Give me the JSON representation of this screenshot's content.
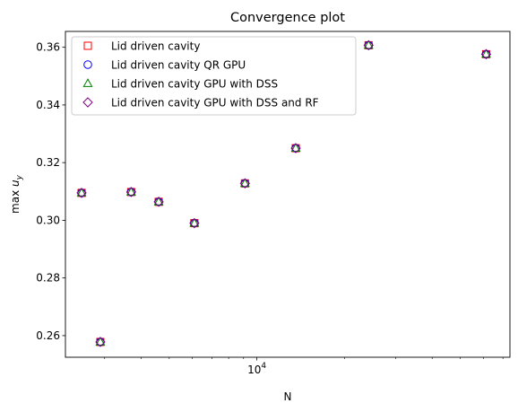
{
  "chart_data": {
    "type": "scatter",
    "title": "Convergence plot",
    "xlabel": "N",
    "ylabel_prefix": "max",
    "ylabel_var": "u",
    "ylabel_sub": "y",
    "x_scale": "log",
    "xlim": [
      2200,
      74000
    ],
    "ylim": [
      0.2525,
      0.3655
    ],
    "x_major_tick_labels": [
      {
        "value": 10000,
        "base": "10",
        "exp": "4"
      }
    ],
    "x_minor_ticks": [
      3000,
      4000,
      5000,
      6000,
      7000,
      8000,
      9000,
      20000,
      30000,
      40000,
      50000,
      60000,
      70000
    ],
    "y_ticks": [
      0.26,
      0.28,
      0.3,
      0.32,
      0.34,
      0.36
    ],
    "y_tick_labels": [
      "0.26",
      "0.28",
      "0.30",
      "0.32",
      "0.34",
      "0.36"
    ],
    "grid": false,
    "legend_position": "top-left",
    "x": [
      2500,
      2900,
      3700,
      4600,
      6100,
      9100,
      13600,
      24200,
      61300
    ],
    "series": [
      {
        "name": "Lid driven cavity",
        "marker": "square",
        "color": "#ff0000",
        "values": [
          0.3095,
          0.2578,
          0.3098,
          0.3064,
          0.299,
          0.3128,
          0.325,
          0.3607,
          0.3576
        ]
      },
      {
        "name": "Lid driven cavity QR GPU",
        "marker": "circle",
        "color": "#0000ff",
        "values": [
          0.3095,
          0.2578,
          0.3098,
          0.3064,
          0.299,
          0.3128,
          0.325,
          0.3607,
          0.3576
        ]
      },
      {
        "name": "Lid driven cavity GPU with DSS",
        "marker": "triangle",
        "color": "#008000",
        "values": [
          0.3095,
          0.2578,
          0.3098,
          0.3064,
          0.299,
          0.3128,
          0.325,
          0.3607,
          0.3576
        ]
      },
      {
        "name": "Lid driven cavity GPU with DSS and RF",
        "marker": "diamond",
        "color": "#800080",
        "values": [
          0.3095,
          0.2578,
          0.3098,
          0.3064,
          0.299,
          0.3128,
          0.325,
          0.3607,
          0.3576
        ]
      }
    ]
  }
}
